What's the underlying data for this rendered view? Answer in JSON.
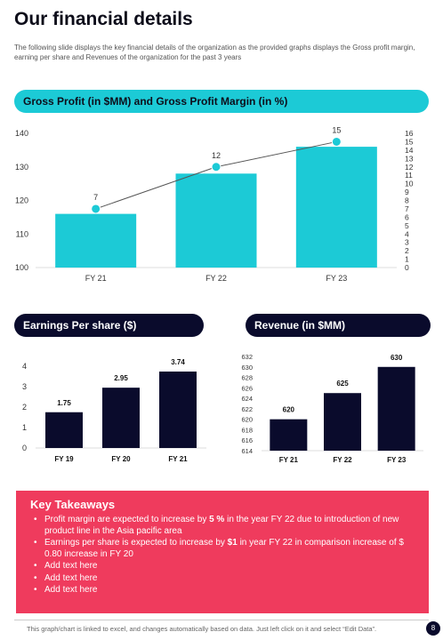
{
  "page": {
    "title": "Our financial details",
    "subtitle": "The following slide displays the key financial details of the organization as the provided graphs displays the Gross profit margin, earning per share and Revenues of the organization for the past 3 years",
    "footer": "This graph/chart is linked to excel, and changes automatically based on data. Just left click on it and select “Edit Data”.",
    "page_number": "8"
  },
  "colors": {
    "teal": "#1ccad6",
    "navy": "#0a0b2c",
    "pink": "#ef3b5d"
  },
  "takeaways": {
    "heading": "Key Takeaways",
    "items": [
      {
        "pre": "Profit margin are expected to increase by ",
        "bold": "5 %",
        "post": " in the year FY 22 due to introduction of new product line in the Asia pacific area"
      },
      {
        "pre": "Earnings per share is expected to increase by ",
        "bold": "$1",
        "post": " in year FY 22 in comparison  increase of $ 0.80 increase in FY 20"
      },
      {
        "pre": "Add text here",
        "bold": "",
        "post": ""
      },
      {
        "pre": "Add text here",
        "bold": "",
        "post": ""
      },
      {
        "pre": "Add text here",
        "bold": "",
        "post": ""
      }
    ]
  },
  "chart_data": [
    {
      "type": "bar",
      "title": "Gross Profit (in $MM) and Gross Profit Margin (in %)",
      "categories": [
        "FY 21",
        "FY 22",
        "FY 23"
      ],
      "series": [
        {
          "type": "bar",
          "axis": "left",
          "values": [
            116,
            128,
            136
          ],
          "color": "#1ccad6"
        },
        {
          "type": "line",
          "axis": "right",
          "values": [
            7,
            12,
            15
          ],
          "labels": [
            "7",
            "12",
            "15"
          ],
          "color": "#1ccad6"
        }
      ],
      "ylim": [
        100,
        140
      ],
      "yticks": [
        100,
        110,
        120,
        130,
        140
      ],
      "y2lim": [
        0,
        16
      ],
      "y2ticks": [
        0,
        1,
        2,
        3,
        4,
        5,
        6,
        7,
        8,
        9,
        10,
        11,
        12,
        13,
        14,
        15,
        16
      ],
      "grid": false
    },
    {
      "type": "bar",
      "title": "Earnings Per share ($)",
      "categories": [
        "FY 19",
        "FY 20",
        "FY 21"
      ],
      "values": [
        1.75,
        2.95,
        3.74
      ],
      "labels": [
        "1.75",
        "2.95",
        "3.74"
      ],
      "ylim": [
        0,
        4
      ],
      "yticks": [
        0,
        1,
        2,
        3,
        4
      ],
      "color": "#0a0b2c",
      "grid": false
    },
    {
      "type": "bar",
      "title": "Revenue (in $MM)",
      "categories": [
        "FY 21",
        "FY 22",
        "FY 23"
      ],
      "values": [
        620,
        625,
        630
      ],
      "labels": [
        "620",
        "625",
        "630"
      ],
      "ylim": [
        614,
        632
      ],
      "yticks": [
        614,
        616,
        618,
        620,
        622,
        624,
        626,
        628,
        630,
        632
      ],
      "color": "#0a0b2c",
      "grid": false
    }
  ]
}
